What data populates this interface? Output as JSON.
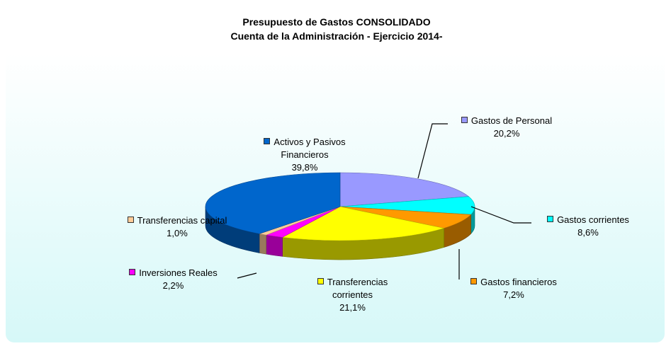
{
  "chart_data": {
    "type": "pie",
    "title": "Presupuesto de Gastos CONSOLIDADO",
    "subtitle": "Cuenta de la Administración - Ejercicio 2014-",
    "categories": [
      "Gastos de Personal",
      "Gastos corrientes",
      "Gastos financieros",
      "Transferencias corrientes",
      "Inversiones Reales",
      "Transferencias capital",
      "Activos y Pasivos Financieros"
    ],
    "values": [
      20.2,
      8.6,
      7.2,
      21.1,
      2.2,
      1.0,
      39.8
    ],
    "value_labels": [
      "20,2%",
      "8,6%",
      "7,2%",
      "21,1%",
      "2,2%",
      "1,0%",
      "39,8%"
    ],
    "colors": [
      "#9999ff",
      "#00ffff",
      "#ff9900",
      "#ffff00",
      "#ff00ff",
      "#ffcc99",
      "#0066cc"
    ]
  }
}
